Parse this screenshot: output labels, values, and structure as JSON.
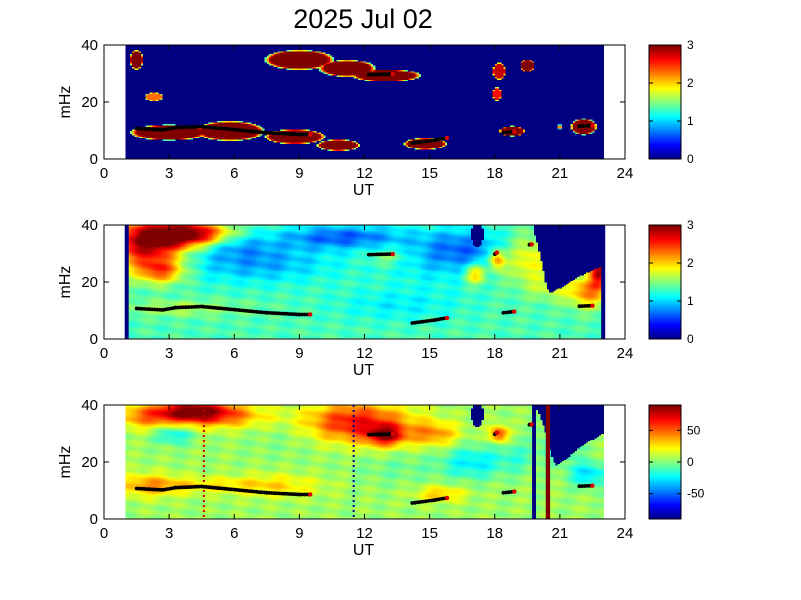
{
  "chart_data": {
    "title": "2025 Jul 02",
    "panels": [
      {
        "type": "heatmap",
        "xlabel": "UT",
        "ylabel": "mHz",
        "xlim": [
          0,
          24
        ],
        "ylim": [
          0,
          40
        ],
        "xticks": [
          0,
          3,
          6,
          9,
          12,
          15,
          18,
          21,
          24
        ],
        "yticks": [
          0,
          20,
          40
        ],
        "colorbar": {
          "range": [
            0,
            3
          ],
          "ticks": [
            0,
            1,
            2,
            3
          ],
          "colormap": "jet"
        },
        "data_range": [
          1,
          23
        ],
        "background_value": 0,
        "background_color": "#00008f",
        "blobs": [
          {
            "x": 1.5,
            "y": 35,
            "sx": 0.3,
            "sy": 3.5,
            "v": 3.0
          },
          {
            "x": 2.3,
            "y": 22,
            "sx": 0.45,
            "sy": 1.5,
            "v": 2.3
          },
          {
            "x": 3.0,
            "y": 9.5,
            "sx": 1.8,
            "sy": 2.8,
            "v": 3.0
          },
          {
            "x": 5.8,
            "y": 10,
            "sx": 1.6,
            "sy": 3.5,
            "v": 3.0
          },
          {
            "x": 8.8,
            "y": 8,
            "sx": 1.4,
            "sy": 2.6,
            "v": 3.0
          },
          {
            "x": 10.8,
            "y": 5,
            "sx": 1.0,
            "sy": 2.0,
            "v": 3.0
          },
          {
            "x": 9.0,
            "y": 35,
            "sx": 1.6,
            "sy": 3.5,
            "v": 3.0
          },
          {
            "x": 11.2,
            "y": 32,
            "sx": 1.3,
            "sy": 3.0,
            "v": 3.0
          },
          {
            "x": 13.0,
            "y": 29.5,
            "sx": 1.6,
            "sy": 2.2,
            "v": 3.0
          },
          {
            "x": 14.8,
            "y": 5.5,
            "sx": 1.0,
            "sy": 2.0,
            "v": 3.0
          },
          {
            "x": 18.2,
            "y": 31,
            "sx": 0.3,
            "sy": 3.0,
            "v": 2.8
          },
          {
            "x": 18.1,
            "y": 23,
            "sx": 0.2,
            "sy": 2.5,
            "v": 2.6
          },
          {
            "x": 19.5,
            "y": 33,
            "sx": 0.35,
            "sy": 2.2,
            "v": 3.0
          },
          {
            "x": 18.8,
            "y": 10,
            "sx": 0.6,
            "sy": 1.8,
            "v": 3.0
          },
          {
            "x": 21.0,
            "y": 11.5,
            "sx": 0.15,
            "sy": 0.8,
            "v": 2.2
          },
          {
            "x": 22.1,
            "y": 11.5,
            "sx": 0.6,
            "sy": 2.8,
            "v": 3.0
          }
        ],
        "ridges": [
          {
            "x": [
              1.5,
              2.7,
              3.3,
              4.5,
              6.0,
              7.5,
              9.0,
              9.5
            ],
            "y": [
              10.7,
              10.2,
              11.0,
              11.4,
              10.3,
              9.2,
              8.6,
              8.6
            ]
          },
          {
            "x": [
              12.2,
              13.3
            ],
            "y": [
              29.6,
              29.8
            ]
          },
          {
            "x": [
              14.2,
              15.2,
              15.8
            ],
            "y": [
              5.6,
              6.6,
              7.4
            ]
          },
          {
            "x": [
              18.4,
              18.9
            ],
            "y": [
              9.2,
              9.6
            ]
          },
          {
            "x": [
              21.9,
              22.5
            ],
            "y": [
              11.5,
              11.7
            ]
          }
        ]
      },
      {
        "type": "heatmap",
        "xlabel": "UT",
        "ylabel": "mHz",
        "xlim": [
          0,
          24
        ],
        "ylim": [
          0,
          40
        ],
        "xticks": [
          0,
          3,
          6,
          9,
          12,
          15,
          18,
          21,
          24
        ],
        "yticks": [
          0,
          20,
          40
        ],
        "colorbar": {
          "range": [
            0,
            3
          ],
          "ticks": [
            0,
            1,
            2,
            3
          ],
          "colormap": "jet"
        },
        "data_range": [
          1,
          23
        ],
        "base_value": 1.35,
        "edge_bars": [
          {
            "x": 1.0,
            "value": 0
          },
          {
            "x": 22.95,
            "value": 0
          }
        ],
        "blobs": [
          {
            "x": 2.0,
            "y": 34,
            "sx": 1.2,
            "sy": 6,
            "v": 1.6
          },
          {
            "x": 4.0,
            "y": 37,
            "sx": 1.2,
            "sy": 3,
            "v": 1.6
          },
          {
            "x": 2.6,
            "y": 24,
            "sx": 0.8,
            "sy": 3,
            "v": 0.9
          },
          {
            "x": 7.0,
            "y": 27,
            "sx": 2.5,
            "sy": 5,
            "v": -0.5
          },
          {
            "x": 6.0,
            "y": 33,
            "sx": 1.2,
            "sy": 3,
            "v": -0.3
          },
          {
            "x": 11.0,
            "y": 36,
            "sx": 2.0,
            "sy": 3,
            "v": -0.7
          },
          {
            "x": 16.5,
            "y": 32,
            "sx": 1.5,
            "sy": 5,
            "v": -0.6
          },
          {
            "x": 19.5,
            "y": 28,
            "sx": 0.8,
            "sy": 6,
            "v": 0.6
          },
          {
            "x": 20.5,
            "y": 18,
            "sx": 0.6,
            "sy": 3,
            "v": 0.3
          },
          {
            "x": 22.3,
            "y": 17,
            "sx": 0.7,
            "sy": 4,
            "v": 0.9
          },
          {
            "x": 22.8,
            "y": 25,
            "sx": 0.3,
            "sy": 4,
            "v": 1.4
          },
          {
            "x": 3.5,
            "y": 11,
            "sx": 2.0,
            "sy": 2,
            "v": 0.3
          },
          {
            "x": 13.0,
            "y": 29,
            "sx": 0.6,
            "sy": 2,
            "v": 0.3
          },
          {
            "x": 17.1,
            "y": 23,
            "sx": 0.35,
            "sy": 2.5,
            "v": 0.8
          },
          {
            "x": 18.1,
            "y": 28,
            "sx": 0.25,
            "sy": 2.5,
            "v": 1.0
          },
          {
            "x": 15.3,
            "y": 25,
            "sx": 1.8,
            "sy": 6,
            "v": -0.2
          },
          {
            "x": 13.5,
            "y": 12,
            "sx": 2.0,
            "sy": 4,
            "v": -0.25
          }
        ],
        "masks": [
          {
            "shape": "poly",
            "value": 0,
            "points": [
              [
                19.8,
                40
              ],
              [
                23.0,
                40
              ],
              [
                23.0,
                26
              ],
              [
                22.0,
                22.5
              ],
              [
                21.0,
                18
              ],
              [
                20.6,
                16
              ],
              [
                20.4,
                18
              ],
              [
                20.2,
                26
              ],
              [
                20.0,
                33
              ],
              [
                19.8,
                38
              ]
            ]
          },
          {
            "shape": "ellipse",
            "value": 0,
            "x": 17.2,
            "y": 37,
            "rx": 0.28,
            "ry": 4.5
          }
        ],
        "ridges": [
          {
            "x": [
              1.5,
              2.7,
              3.3,
              4.5,
              6.0,
              7.5,
              9.0,
              9.5
            ],
            "y": [
              10.7,
              10.2,
              11.0,
              11.4,
              10.3,
              9.2,
              8.6,
              8.6
            ]
          },
          {
            "x": [
              12.2,
              13.3
            ],
            "y": [
              29.6,
              29.8
            ]
          },
          {
            "x": [
              14.2,
              15.2,
              15.8
            ],
            "y": [
              5.6,
              6.6,
              7.4
            ]
          },
          {
            "x": [
              18.4,
              18.9
            ],
            "y": [
              9.2,
              9.6
            ]
          },
          {
            "x": [
              21.9,
              22.5
            ],
            "y": [
              11.5,
              11.7
            ]
          },
          {
            "x": [
              18.0,
              18.1
            ],
            "y": [
              29.8,
              30.3
            ]
          },
          {
            "x": [
              19.6,
              19.7
            ],
            "y": [
              33.1,
              33.2
            ]
          }
        ]
      },
      {
        "type": "heatmap",
        "xlabel": "UT",
        "ylabel": "mHz",
        "xlim": [
          0,
          24
        ],
        "ylim": [
          0,
          40
        ],
        "xticks": [
          0,
          3,
          6,
          9,
          12,
          15,
          18,
          21,
          24
        ],
        "yticks": [
          0,
          20,
          40
        ],
        "colorbar": {
          "range": [
            -90,
            90
          ],
          "ticks": [
            50,
            0,
            -50
          ],
          "colormap": "jet"
        },
        "data_range": [
          1,
          23
        ],
        "base_value": 5,
        "blobs": [
          {
            "x": 4.2,
            "y": 38,
            "sx": 1.3,
            "sy": 3,
            "v": 78
          },
          {
            "x": 2.0,
            "y": 36,
            "sx": 1.2,
            "sy": 3,
            "v": 35
          },
          {
            "x": 6.0,
            "y": 36,
            "sx": 1.5,
            "sy": 3,
            "v": 25
          },
          {
            "x": 3.2,
            "y": 30,
            "sx": 0.6,
            "sy": 2.5,
            "v": -30
          },
          {
            "x": 11.5,
            "y": 34,
            "sx": 1.8,
            "sy": 5,
            "v": 65
          },
          {
            "x": 13.0,
            "y": 29.5,
            "sx": 0.6,
            "sy": 2.5,
            "v": 60
          },
          {
            "x": 15.2,
            "y": 30,
            "sx": 0.8,
            "sy": 3,
            "v": 35
          },
          {
            "x": 9.0,
            "y": 32,
            "sx": 1.5,
            "sy": 6,
            "v": -12
          },
          {
            "x": 17.0,
            "y": 20,
            "sx": 1.0,
            "sy": 4,
            "v": -30
          },
          {
            "x": 18.2,
            "y": 30,
            "sx": 0.3,
            "sy": 2,
            "v": 55
          },
          {
            "x": 19.0,
            "y": 22,
            "sx": 0.6,
            "sy": 4,
            "v": -15
          },
          {
            "x": 22.3,
            "y": 16,
            "sx": 0.6,
            "sy": 3,
            "v": -35
          },
          {
            "x": 2.0,
            "y": 12,
            "sx": 1.0,
            "sy": 3,
            "v": 30
          },
          {
            "x": 4.5,
            "y": 12,
            "sx": 2.0,
            "sy": 2,
            "v": 20
          },
          {
            "x": 8.0,
            "y": 12,
            "sx": 1.5,
            "sy": 3,
            "v": 20
          },
          {
            "x": 15.5,
            "y": 9,
            "sx": 0.8,
            "sy": 2,
            "v": 28
          },
          {
            "x": 21.0,
            "y": 26,
            "sx": 0.6,
            "sy": 4,
            "v": -25
          },
          {
            "x": 13.5,
            "y": 18,
            "sx": 1.5,
            "sy": 4,
            "v": -8
          }
        ],
        "masks": [
          {
            "shape": "poly",
            "value": -90,
            "points": [
              [
                19.8,
                40
              ],
              [
                23.0,
                40
              ],
              [
                23.0,
                30
              ],
              [
                22.0,
                26
              ],
              [
                21.3,
                21
              ],
              [
                20.8,
                19
              ],
              [
                20.6,
                23
              ],
              [
                20.3,
                32
              ],
              [
                20.0,
                38
              ]
            ]
          },
          {
            "shape": "ellipse",
            "value": -90,
            "x": 17.2,
            "y": 37,
            "rx": 0.28,
            "ry": 4.5
          }
        ],
        "vbars": [
          {
            "x0": 19.72,
            "x1": 19.9,
            "value": -90
          },
          {
            "x0": 20.35,
            "x1": 20.55,
            "value": 90
          }
        ],
        "vlines": [
          {
            "x": 4.6,
            "style": "dotted",
            "color": "#c80000"
          },
          {
            "x": 11.5,
            "style": "dotted",
            "color": "#00008f"
          }
        ],
        "ridges": [
          {
            "x": [
              1.5,
              2.7,
              3.3,
              4.5,
              6.0,
              7.5,
              9.0,
              9.5
            ],
            "y": [
              10.7,
              10.2,
              11.0,
              11.4,
              10.3,
              9.2,
              8.6,
              8.6
            ]
          },
          {
            "x": [
              12.2,
              13.3
            ],
            "y": [
              29.6,
              29.8
            ]
          },
          {
            "x": [
              14.2,
              15.2,
              15.8
            ],
            "y": [
              5.6,
              6.6,
              7.4
            ]
          },
          {
            "x": [
              18.4,
              18.9
            ],
            "y": [
              9.2,
              9.6
            ]
          },
          {
            "x": [
              21.9,
              22.5
            ],
            "y": [
              11.5,
              11.7
            ]
          },
          {
            "x": [
              18.0,
              18.1
            ],
            "y": [
              29.8,
              30.3
            ]
          },
          {
            "x": [
              19.6,
              19.7
            ],
            "y": [
              33.1,
              33.2
            ]
          }
        ]
      }
    ]
  }
}
